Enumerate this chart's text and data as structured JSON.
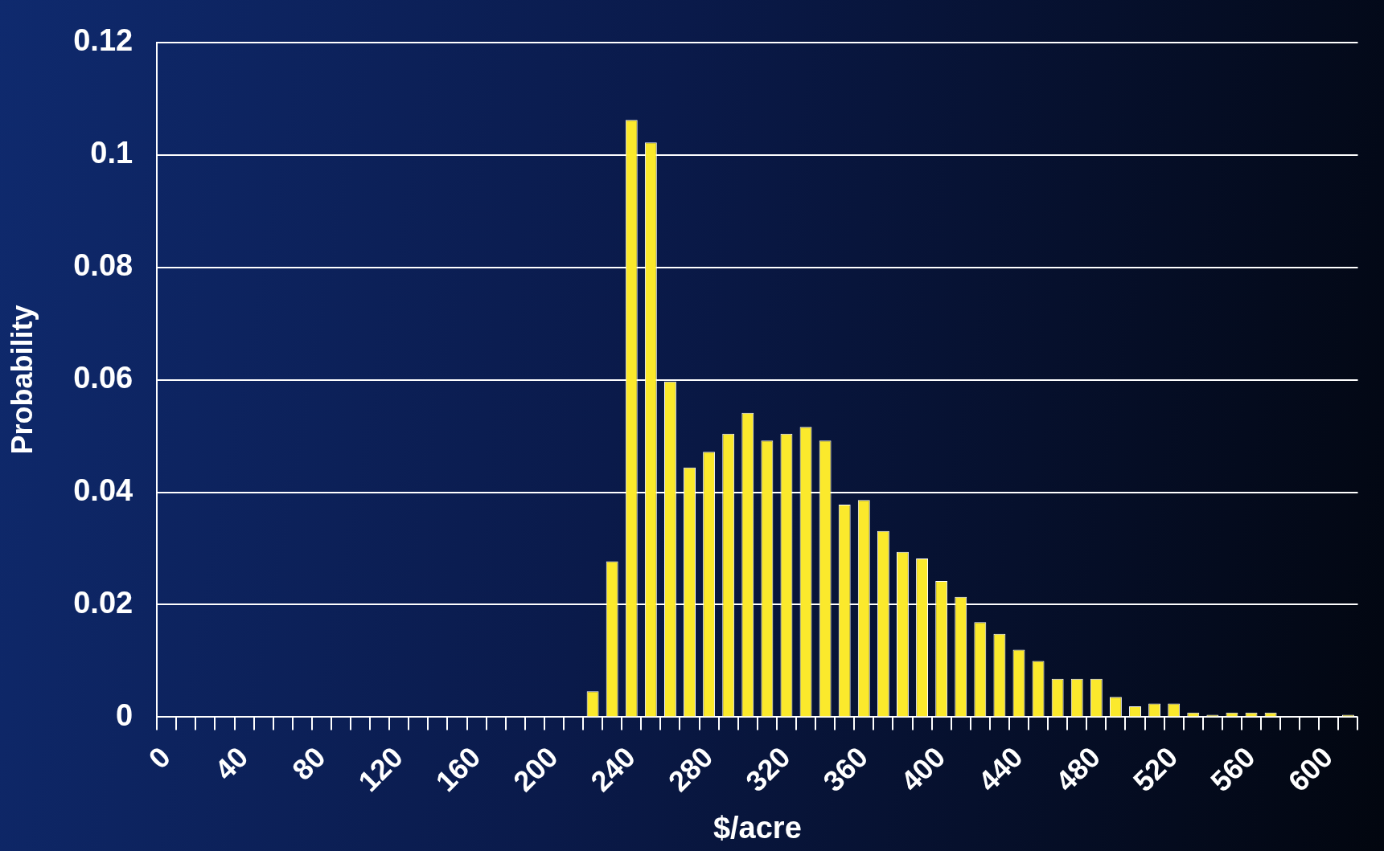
{
  "chart_data": {
    "type": "bar",
    "xlabel": "$/acre",
    "ylabel": "Probability",
    "categories": [
      "0",
      null,
      null,
      null,
      "40",
      null,
      null,
      null,
      "80",
      null,
      null,
      null,
      "120",
      null,
      null,
      null,
      "160",
      null,
      null,
      null,
      "200",
      null,
      null,
      null,
      "240",
      null,
      null,
      null,
      "280",
      null,
      null,
      null,
      "320",
      null,
      null,
      null,
      "360",
      null,
      null,
      null,
      "400",
      null,
      null,
      null,
      "440",
      null,
      null,
      null,
      "480",
      null,
      null,
      null,
      "520",
      null,
      null,
      null,
      "560",
      null,
      null,
      null,
      "600",
      null
    ],
    "values": [
      0,
      0,
      0,
      0,
      0,
      0,
      0,
      0,
      0,
      0,
      0,
      0,
      0,
      0,
      0,
      0,
      0,
      0,
      0,
      0,
      0,
      0,
      0.0046,
      0.0277,
      0.1062,
      0.1022,
      0.0597,
      0.0444,
      0.0472,
      0.0504,
      0.0541,
      0.0492,
      0.0504,
      0.0516,
      0.0492,
      0.0378,
      0.0386,
      0.0331,
      0.0294,
      0.0282,
      0.0242,
      0.0214,
      0.0169,
      0.0148,
      0.012,
      0.01,
      0.0068,
      0.0068,
      0.0068,
      0.0036,
      0.0019,
      0.0024,
      0.0024,
      0.0008,
      0.0004,
      0.0008,
      0.0008,
      0.0008,
      0,
      0,
      0,
      0.0004
    ],
    "color": "#fbe92c",
    "ylim": [
      0,
      0.12
    ],
    "yticks": [
      0,
      0.02,
      0.04,
      0.06,
      0.08,
      0.1,
      0.12
    ],
    "grid": "y"
  }
}
